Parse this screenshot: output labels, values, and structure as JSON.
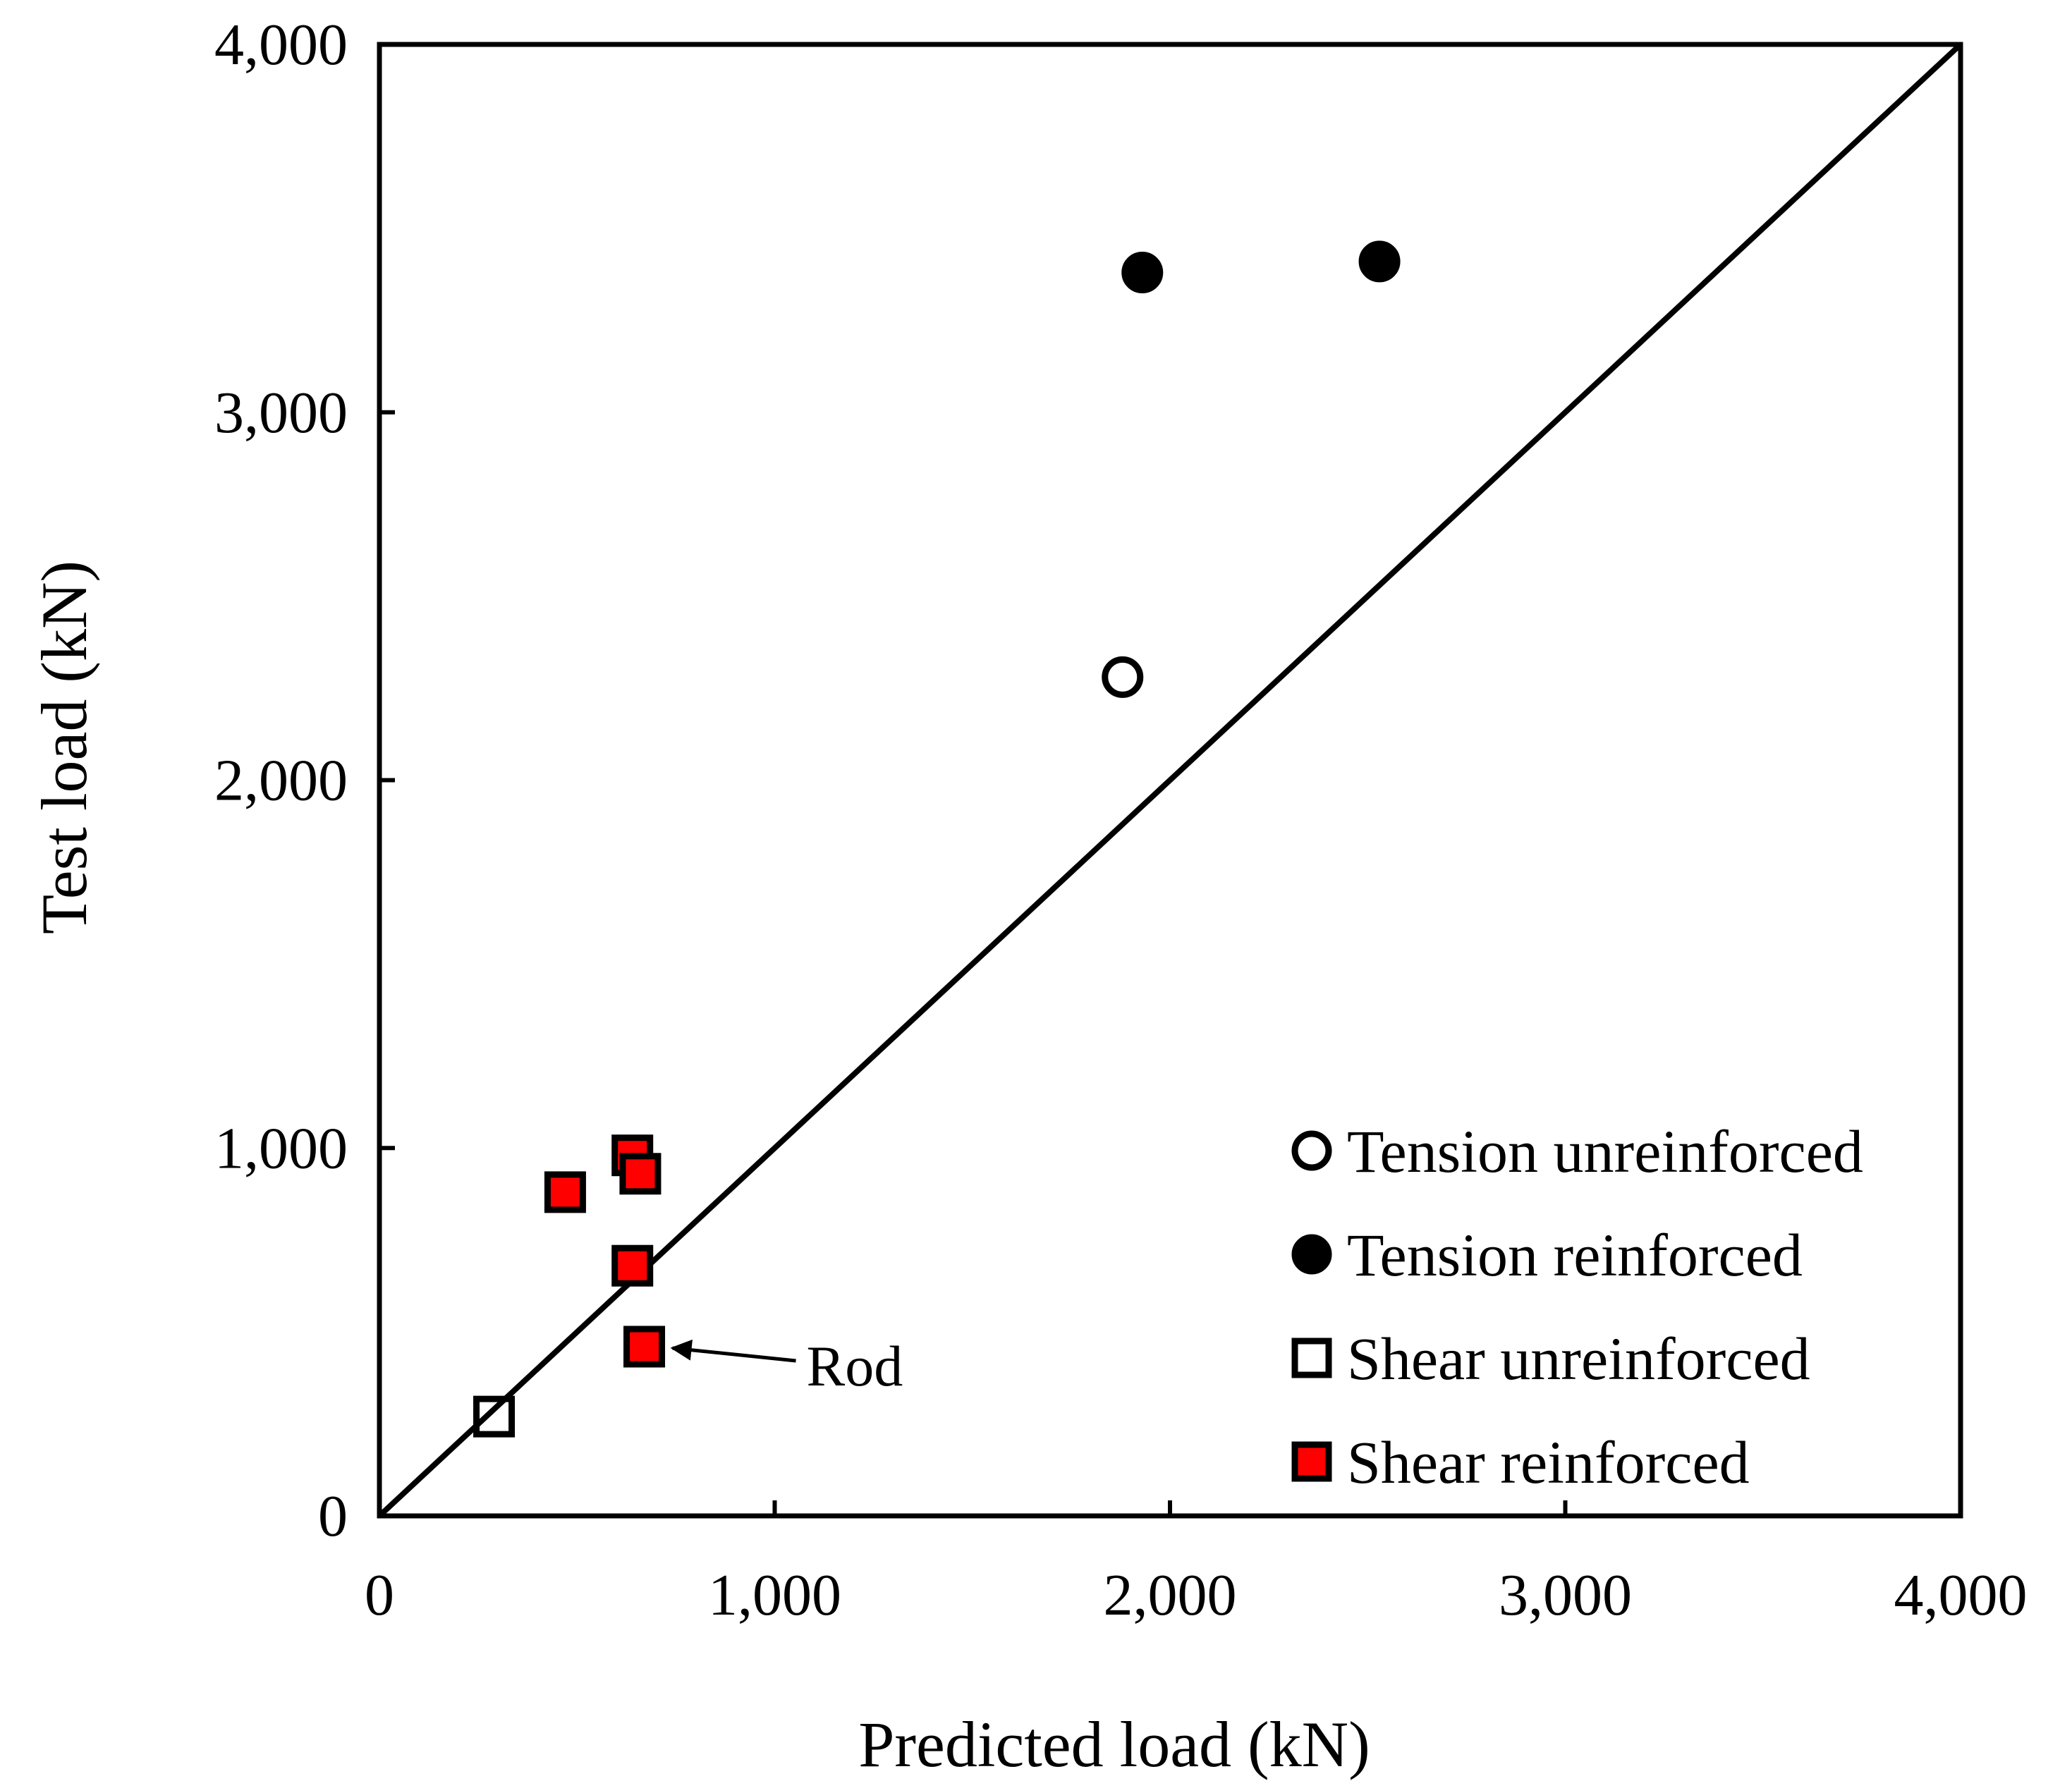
{
  "chart_data": {
    "type": "scatter",
    "title": "",
    "xlabel": "Predicted load (kN)",
    "ylabel": "Test load (kN)",
    "xlim": [
      0,
      4000
    ],
    "ylim": [
      0,
      4000
    ],
    "x_ticks": [
      "0",
      "1,000",
      "2,000",
      "3,000",
      "4,000"
    ],
    "y_ticks": [
      "0",
      "1,000",
      "2,000",
      "3,000",
      "4,000"
    ],
    "x_tick_values": [
      0,
      1000,
      2000,
      3000,
      4000
    ],
    "y_tick_values": [
      0,
      1000,
      2000,
      3000,
      4000
    ],
    "grid": false,
    "legend_position": "bottom-right",
    "reference_line": {
      "x": [
        0,
        4000
      ],
      "y": [
        0,
        4000
      ],
      "color": "#000000"
    },
    "series": [
      {
        "name": "Tension unreinforced",
        "marker": "circle",
        "fill": "none",
        "stroke": "#000000",
        "points": [
          {
            "x": 1880,
            "y": 2280
          }
        ]
      },
      {
        "name": "Tension reinforced",
        "marker": "circle",
        "fill": "#000000",
        "stroke": "#000000",
        "points": [
          {
            "x": 1930,
            "y": 3380
          },
          {
            "x": 2530,
            "y": 3410
          }
        ]
      },
      {
        "name": "Shear unreinforced",
        "marker": "square",
        "fill": "none",
        "stroke": "#000000",
        "points": [
          {
            "x": 290,
            "y": 270
          }
        ]
      },
      {
        "name": "Shear reinforced",
        "marker": "square",
        "fill": "#ff0000",
        "stroke": "#000000",
        "points": [
          {
            "x": 470,
            "y": 880
          },
          {
            "x": 640,
            "y": 980
          },
          {
            "x": 660,
            "y": 930
          },
          {
            "x": 640,
            "y": 680
          },
          {
            "x": 670,
            "y": 460
          }
        ]
      }
    ],
    "annotations": [
      {
        "text": "Rod",
        "x": 670,
        "y": 460
      }
    ]
  }
}
